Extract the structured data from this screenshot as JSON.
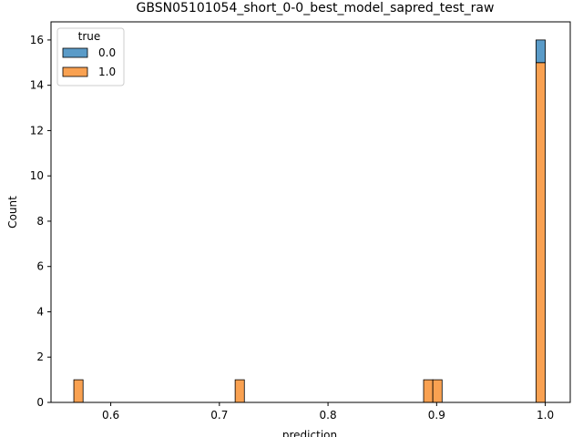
{
  "chart_data": {
    "type": "bar",
    "subtype": "stacked-histogram",
    "title": "GBSN05101054_short_0-0_best_model_sapred_test_raw",
    "xlabel": "prediction",
    "ylabel": "Count",
    "xlim": [
      0.545,
      1.023
    ],
    "ylim": [
      0,
      16.8
    ],
    "xticks": [
      0.6,
      0.7,
      0.8,
      0.9,
      1.0
    ],
    "xtick_labels": [
      "0.6",
      "0.7",
      "0.8",
      "0.9",
      "1.0"
    ],
    "yticks": [
      0,
      2,
      4,
      6,
      8,
      10,
      12,
      14,
      16
    ],
    "ytick_labels": [
      "0",
      "2",
      "4",
      "6",
      "8",
      "10",
      "12",
      "14",
      "16"
    ],
    "bin_width": 0.0085,
    "legend": {
      "title": "true",
      "placement": "top-left",
      "entries": [
        "0.0",
        "1.0"
      ]
    },
    "series": [
      {
        "name": "0.0",
        "color": "#5a9bc8",
        "bins": [
          {
            "x0": 0.9915,
            "x1": 1.0,
            "count": 1
          }
        ]
      },
      {
        "name": "1.0",
        "color": "#f9a151",
        "bins": [
          {
            "x0": 0.566,
            "x1": 0.5745,
            "count": 1
          },
          {
            "x0": 0.7145,
            "x1": 0.723,
            "count": 1
          },
          {
            "x0": 0.888,
            "x1": 0.8965,
            "count": 1
          },
          {
            "x0": 0.8965,
            "x1": 0.905,
            "count": 1
          },
          {
            "x0": 0.9915,
            "x1": 1.0,
            "count": 15
          }
        ]
      }
    ]
  }
}
